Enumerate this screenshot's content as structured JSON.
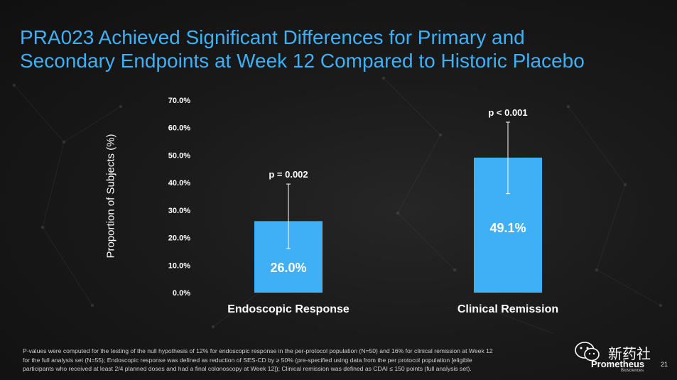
{
  "title": {
    "line1": "PRA023 Achieved Significant Differences for Primary and",
    "line2": "Secondary Endpoints at Week 12 Compared to Historic Placebo"
  },
  "chart_data": {
    "type": "bar",
    "ylabel": "Proportion of Subjects (%)",
    "xlabel": "",
    "ylim": [
      0,
      70
    ],
    "yticks": [
      "70.0%",
      "60.0%",
      "50.0%",
      "40.0%",
      "30.0%",
      "20.0%",
      "10.0%",
      "0.0%"
    ],
    "ytick_values": [
      70,
      60,
      50,
      40,
      30,
      20,
      10,
      0
    ],
    "categories": [
      "Endoscopic Response",
      "Clinical Remission"
    ],
    "values": [
      26.0,
      49.1
    ],
    "value_labels": [
      "26.0%",
      "49.1%"
    ],
    "error_low": [
      16.0,
      36.0
    ],
    "error_high": [
      39.5,
      62.0
    ],
    "annotations": [
      "p = 0.002",
      "p < 0.001"
    ],
    "bar_color": "#3fb0f5"
  },
  "footnote": {
    "line1": "P-values were computed for the testing of the null hypothesis of 12% for endoscopic response in the per-protocol population (N=50) and 16% for clinical remission at Week 12",
    "line2": "for the full analysis set (N=55); Endoscopic response was defined as reduction of SES-CD by ≥ 50% (pre-specified using data from the per protocol population [eligible",
    "line3": "participants who received at least 2/4 planned doses and had a final colonoscopy at Week 12]); Clinical remission was defined as CDAI ≤ 150 points (full analysis set)."
  },
  "brand": {
    "watermark": "新药社",
    "name": "Prometheus",
    "sub": "Biosciences"
  },
  "page_number": "21",
  "colors": {
    "accent": "#3fb0f5",
    "background": "#141414"
  }
}
